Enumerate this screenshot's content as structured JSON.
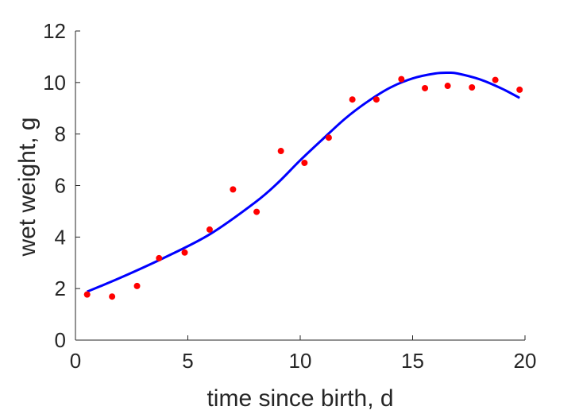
{
  "chart_data": {
    "type": "scatter",
    "xlabel": "time since birth, d",
    "ylabel": "wet weight, g",
    "xlim": [
      0,
      20
    ],
    "ylim": [
      0,
      12
    ],
    "x_ticks": [
      0,
      5,
      10,
      15,
      20
    ],
    "y_ticks": [
      0,
      2,
      4,
      6,
      8,
      10,
      12
    ],
    "x_tick_labels": [
      "0",
      "5",
      "10",
      "15",
      "20"
    ],
    "y_tick_labels": [
      "0",
      "2",
      "4",
      "6",
      "8",
      "10",
      "12"
    ],
    "grid": false,
    "series": [
      {
        "kind": "points",
        "color": "#ff0000",
        "x": [
          0.52,
          1.63,
          2.74,
          3.72,
          4.86,
          5.97,
          7.01,
          8.06,
          9.14,
          10.19,
          11.27,
          12.32,
          13.39,
          14.5,
          15.55,
          16.56,
          17.64,
          18.68,
          19.76
        ],
        "y": [
          1.77,
          1.69,
          2.1,
          3.18,
          3.4,
          4.29,
          5.85,
          4.98,
          7.34,
          6.88,
          7.86,
          9.34,
          9.34,
          10.13,
          9.78,
          9.87,
          9.81,
          10.1,
          9.72
        ]
      },
      {
        "kind": "line",
        "color": "#0000ff",
        "x": [
          0.52,
          2,
          4,
          6,
          8,
          9,
          10,
          11,
          12,
          13,
          14,
          15,
          16,
          16.6,
          17,
          18,
          19,
          19.76
        ],
        "y": [
          1.88,
          2.42,
          3.22,
          4.12,
          5.35,
          6.1,
          6.98,
          7.8,
          8.6,
          9.26,
          9.8,
          10.16,
          10.35,
          10.38,
          10.35,
          10.12,
          9.75,
          9.4
        ]
      }
    ]
  }
}
